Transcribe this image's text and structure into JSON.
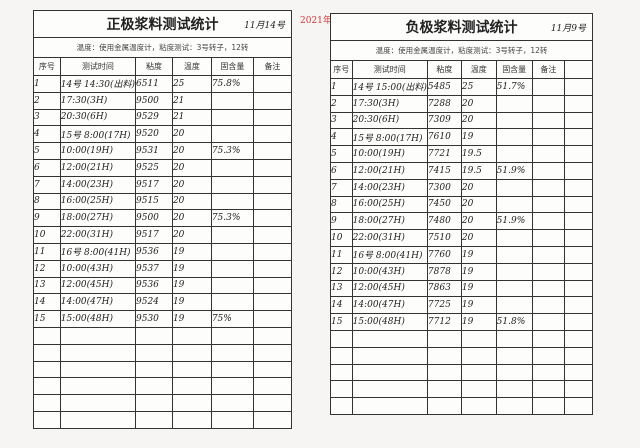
{
  "year_stamp": "2021年",
  "left": {
    "title": "正极浆料测试统计",
    "date_note": "11月14号",
    "subtitle": "温度：使用金属温度计，粘度测试：3号转子，12转",
    "headers": [
      "序号",
      "测试时间",
      "粘度",
      "温度",
      "固含量",
      "备注"
    ],
    "rows": [
      [
        "1",
        "14号 14:30(出料)",
        "6511",
        "25",
        "75.8%",
        ""
      ],
      [
        "2",
        "17:30(3H)",
        "9500",
        "21",
        "",
        ""
      ],
      [
        "3",
        "20:30(6H)",
        "9529",
        "21",
        "",
        ""
      ],
      [
        "4",
        "15号 8:00(17H)",
        "9520",
        "20",
        "",
        ""
      ],
      [
        "5",
        "10:00(19H)",
        "9531",
        "20",
        "75.3%",
        ""
      ],
      [
        "6",
        "12:00(21H)",
        "9525",
        "20",
        "",
        ""
      ],
      [
        "7",
        "14:00(23H)",
        "9517",
        "20",
        "",
        ""
      ],
      [
        "8",
        "16:00(25H)",
        "9515",
        "20",
        "",
        ""
      ],
      [
        "9",
        "18:00(27H)",
        "9500",
        "20",
        "75.3%",
        ""
      ],
      [
        "10",
        "22:00(31H)",
        "9517",
        "20",
        "",
        ""
      ],
      [
        "11",
        "16号 8:00(41H)",
        "9536",
        "19",
        "",
        ""
      ],
      [
        "12",
        "10:00(43H)",
        "9537",
        "19",
        "",
        ""
      ],
      [
        "13",
        "12:00(45H)",
        "9536",
        "19",
        "",
        ""
      ],
      [
        "14",
        "14:00(47H)",
        "9524",
        "19",
        "",
        ""
      ],
      [
        "15",
        "15:00(48H)",
        "9530",
        "19",
        "75%",
        ""
      ]
    ],
    "blank_rows": 6
  },
  "right": {
    "title": "负极浆料测试统计",
    "date_note": "11月9号",
    "subtitle": "温度：使用金属温度计，粘度测试：3号转子，12转",
    "headers": [
      "序号",
      "测试时间",
      "粘度",
      "温度",
      "固含量",
      "备注",
      ""
    ],
    "rows": [
      [
        "1",
        "14号 15:00(出料)",
        "5485",
        "25",
        "51.7%",
        "",
        ""
      ],
      [
        "2",
        "17:30(3H)",
        "7288",
        "20",
        "",
        "",
        ""
      ],
      [
        "3",
        "20:30(6H)",
        "7309",
        "20",
        "",
        "",
        ""
      ],
      [
        "4",
        "15号 8:00(17H)",
        "7610",
        "19",
        "",
        "",
        ""
      ],
      [
        "5",
        "10:00(19H)",
        "7721",
        "19.5",
        "",
        "",
        ""
      ],
      [
        "6",
        "12:00(21H)",
        "7415",
        "19.5",
        "51.9%",
        "",
        ""
      ],
      [
        "7",
        "14:00(23H)",
        "7300",
        "20",
        "",
        "",
        ""
      ],
      [
        "8",
        "16:00(25H)",
        "7450",
        "20",
        "",
        "",
        ""
      ],
      [
        "9",
        "18:00(27H)",
        "7480",
        "20",
        "51.9%",
        "",
        ""
      ],
      [
        "10",
        "22:00(31H)",
        "7510",
        "20",
        "",
        "",
        ""
      ],
      [
        "11",
        "16号 8:00(41H)",
        "7760",
        "19",
        "",
        "",
        ""
      ],
      [
        "12",
        "10:00(43H)",
        "7878",
        "19",
        "",
        "",
        ""
      ],
      [
        "13",
        "12:00(45H)",
        "7863",
        "19",
        "",
        "",
        ""
      ],
      [
        "14",
        "14:00(47H)",
        "7725",
        "19",
        "",
        "",
        ""
      ],
      [
        "15",
        "15:00(48H)",
        "7712",
        "19",
        "51.8%",
        "",
        ""
      ]
    ],
    "blank_rows": 5
  }
}
